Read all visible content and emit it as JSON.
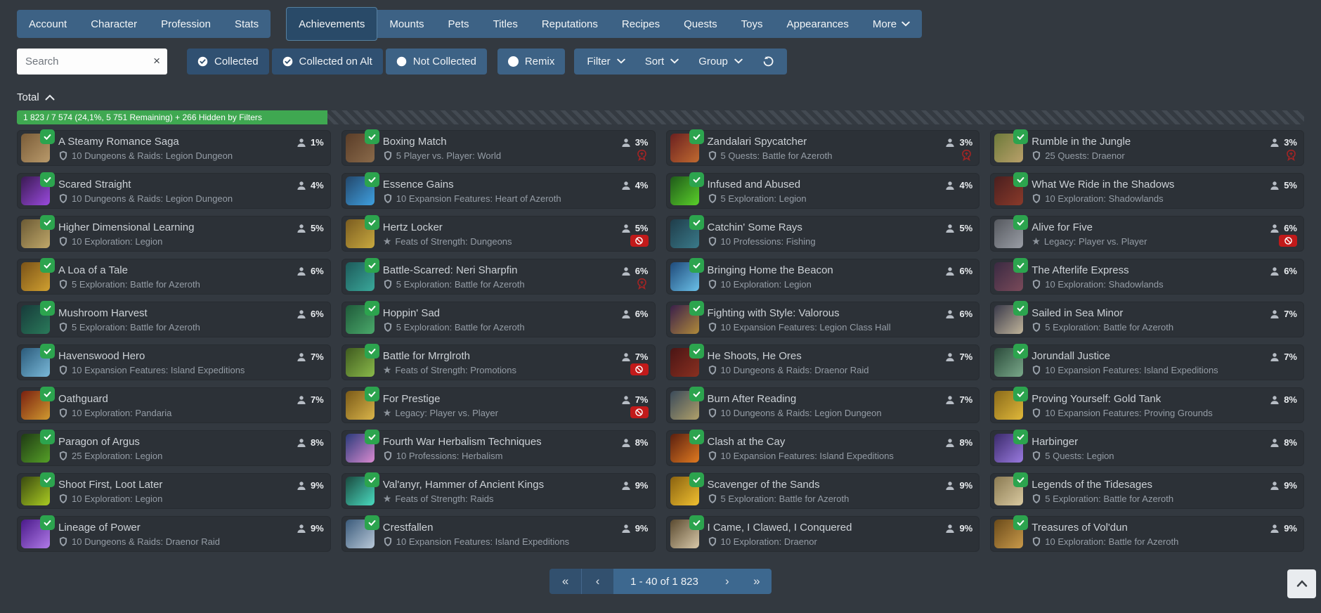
{
  "colors": {
    "nav_blue": "#3d6285",
    "selected_tab": "#294a68",
    "active_filter": "#305071",
    "progress_green": "#3fa851",
    "collected_badge_green": "#2ca44e",
    "unobtainable_red": "#c11a1a",
    "horde_red": "#a32424"
  },
  "nav": {
    "group1": [
      "Account",
      "Character",
      "Profession",
      "Stats"
    ],
    "group2": [
      "Achievements",
      "Mounts",
      "Pets",
      "Titles",
      "Reputations",
      "Recipes",
      "Quests",
      "Toys",
      "Appearances"
    ],
    "selected": "Achievements",
    "more_label": "More"
  },
  "filters": {
    "search_placeholder": "Search",
    "clear_icon": "×",
    "toggles": [
      {
        "label": "Collected",
        "icon": "check-circle",
        "active": true
      },
      {
        "label": "Collected on Alt",
        "icon": "check-circle",
        "active": true
      },
      {
        "label": "Not Collected",
        "icon": "circle",
        "active": false
      }
    ],
    "remix_label": "Remix",
    "dropdowns": [
      "Filter",
      "Sort",
      "Group"
    ]
  },
  "summary": {
    "section_label": "Total",
    "progress_text": "1 823 / 7 574 (24,1%, 5 751 Remaining) + 266 Hidden by Filters",
    "progress_percent": 24.1
  },
  "cards": [
    {
      "title": "A Steamy Romance Saga",
      "category_icon": "shield",
      "category": "10 Dungeons & Raids: Legion Dungeon",
      "percent": "1%",
      "badge": null,
      "icon_colors": [
        "#7a5c38",
        "#b99a6b"
      ]
    },
    {
      "title": "Boxing Match",
      "category_icon": "shield",
      "category": "5 Player vs. Player: World",
      "percent": "3%",
      "badge": "horde",
      "icon_colors": [
        "#5a3d28",
        "#8a6a4a"
      ]
    },
    {
      "title": "Zandalari Spycatcher",
      "category_icon": "shield",
      "category": "5 Quests: Battle for Azeroth",
      "percent": "3%",
      "badge": "horde",
      "icon_colors": [
        "#6b2020",
        "#c06a30"
      ]
    },
    {
      "title": "Rumble in the Jungle",
      "category_icon": "shield",
      "category": "25 Quests: Draenor",
      "percent": "3%",
      "badge": "horde",
      "icon_colors": [
        "#6d7a3a",
        "#b9a06a"
      ]
    },
    {
      "title": "Scared Straight",
      "category_icon": "shield",
      "category": "10 Dungeons & Raids: Legion Dungeon",
      "percent": "4%",
      "badge": null,
      "icon_colors": [
        "#3a1a52",
        "#9a4ade"
      ]
    },
    {
      "title": "Essence Gains",
      "category_icon": "shield",
      "category": "10 Expansion Features: Heart of Azeroth",
      "percent": "4%",
      "badge": null,
      "icon_colors": [
        "#23476b",
        "#3fa0e0"
      ]
    },
    {
      "title": "Infused and Abused",
      "category_icon": "shield",
      "category": "5 Exploration: Legion",
      "percent": "4%",
      "badge": null,
      "icon_colors": [
        "#1f5a1a",
        "#5ad02a"
      ]
    },
    {
      "title": "What We Ride in the Shadows",
      "category_icon": "shield",
      "category": "10 Exploration: Shadowlands",
      "percent": "5%",
      "badge": null,
      "icon_colors": [
        "#4a1f1f",
        "#8a3a2a"
      ]
    },
    {
      "title": "Higher Dimensional Learning",
      "category_icon": "shield",
      "category": "10 Exploration: Legion",
      "percent": "5%",
      "badge": null,
      "icon_colors": [
        "#6b5a34",
        "#c0a86a"
      ]
    },
    {
      "title": "Hertz Locker",
      "category_icon": "star",
      "category": "Feats of Strength: Dungeons",
      "percent": "5%",
      "badge": "unobtainable",
      "icon_colors": [
        "#7a5c20",
        "#c9a93f"
      ]
    },
    {
      "title": "Catchin' Some Rays",
      "category_icon": "shield",
      "category": "10 Professions: Fishing",
      "percent": "5%",
      "badge": null,
      "icon_colors": [
        "#1f3d4a",
        "#3a7a8a"
      ]
    },
    {
      "title": "Alive for Five",
      "category_icon": "star",
      "category": "Legacy: Player vs. Player",
      "percent": "6%",
      "badge": "unobtainable",
      "icon_colors": [
        "#55585e",
        "#9a9ea6"
      ]
    },
    {
      "title": "A Loa of a Tale",
      "category_icon": "shield",
      "category": "5 Exploration: Battle for Azeroth",
      "percent": "6%",
      "badge": null,
      "icon_colors": [
        "#7a5218",
        "#d0a030"
      ]
    },
    {
      "title": "Battle-Scarred: Neri Sharpfin",
      "category_icon": "shield",
      "category": "5 Exploration: Battle for Azeroth",
      "percent": "6%",
      "badge": "horde",
      "icon_colors": [
        "#1d5a5a",
        "#3aa89a"
      ]
    },
    {
      "title": "Bringing Home the Beacon",
      "category_icon": "shield",
      "category": "10 Exploration: Legion",
      "percent": "6%",
      "badge": null,
      "icon_colors": [
        "#1f4a7a",
        "#6ac0e8"
      ]
    },
    {
      "title": "The Afterlife Express",
      "category_icon": "shield",
      "category": "10 Exploration: Shadowlands",
      "percent": "6%",
      "badge": null,
      "icon_colors": [
        "#3a2a42",
        "#7a4a5a"
      ]
    },
    {
      "title": "Mushroom Harvest",
      "category_icon": "shield",
      "category": "5 Exploration: Battle for Azeroth",
      "percent": "6%",
      "badge": null,
      "icon_colors": [
        "#173a3a",
        "#2a7a5a"
      ]
    },
    {
      "title": "Hoppin' Sad",
      "category_icon": "shield",
      "category": "5 Exploration: Battle for Azeroth",
      "percent": "6%",
      "badge": null,
      "icon_colors": [
        "#1f5a3a",
        "#4aa96a"
      ]
    },
    {
      "title": "Fighting with Style: Valorous",
      "category_icon": "shield",
      "category": "10 Expansion Features: Legion Class Hall",
      "percent": "6%",
      "badge": null,
      "icon_colors": [
        "#3a1f4a",
        "#b08a3a"
      ]
    },
    {
      "title": "Sailed in Sea Minor",
      "category_icon": "shield",
      "category": "5 Exploration: Battle for Azeroth",
      "percent": "7%",
      "badge": null,
      "icon_colors": [
        "#3a3a4a",
        "#c0b49a"
      ]
    },
    {
      "title": "Havenswood Hero",
      "category_icon": "shield",
      "category": "10 Expansion Features: Island Expeditions",
      "percent": "7%",
      "badge": null,
      "icon_colors": [
        "#2a5a7a",
        "#7ab9d9"
      ]
    },
    {
      "title": "Battle for Mrrglroth",
      "category_icon": "star",
      "category": "Feats of Strength: Promotions",
      "percent": "7%",
      "badge": "unobtainable",
      "icon_colors": [
        "#3f5a1f",
        "#8aba4a"
      ]
    },
    {
      "title": "He Shoots, He Ores",
      "category_icon": "shield",
      "category": "10 Dungeons & Raids: Draenor Raid",
      "percent": "7%",
      "badge": null,
      "icon_colors": [
        "#4a1515",
        "#8a3020"
      ]
    },
    {
      "title": "Jorundall Justice",
      "category_icon": "shield",
      "category": "10 Expansion Features: Island Expeditions",
      "percent": "7%",
      "badge": null,
      "icon_colors": [
        "#2a4a3a",
        "#7aa98a"
      ]
    },
    {
      "title": "Oathguard",
      "category_icon": "shield",
      "category": "10 Exploration: Pandaria",
      "percent": "7%",
      "badge": null,
      "icon_colors": [
        "#7a2010",
        "#d09a30"
      ]
    },
    {
      "title": "For Prestige",
      "category_icon": "star",
      "category": "Legacy: Player vs. Player",
      "percent": "7%",
      "badge": "unobtainable",
      "icon_colors": [
        "#7a5a18",
        "#d9b44a"
      ]
    },
    {
      "title": "Burn After Reading",
      "category_icon": "shield",
      "category": "10 Dungeons & Raids: Legion Dungeon",
      "percent": "7%",
      "badge": null,
      "icon_colors": [
        "#3a4a5a",
        "#b0a06a"
      ]
    },
    {
      "title": "Proving Yourself: Gold Tank",
      "category_icon": "shield",
      "category": "10 Expansion Features: Proving Grounds",
      "percent": "8%",
      "badge": null,
      "icon_colors": [
        "#8a6a1a",
        "#e0b83a"
      ]
    },
    {
      "title": "Paragon of Argus",
      "category_icon": "shield",
      "category": "25 Exploration: Legion",
      "percent": "8%",
      "badge": null,
      "icon_colors": [
        "#1f3a14",
        "#55a027"
      ]
    },
    {
      "title": "Fourth War Herbalism Techniques",
      "category_icon": "shield",
      "category": "10 Professions: Herbalism",
      "percent": "8%",
      "badge": null,
      "icon_colors": [
        "#2a3a7a",
        "#d98ad0"
      ]
    },
    {
      "title": "Clash at the Cay",
      "category_icon": "shield",
      "category": "10 Expansion Features: Island Expeditions",
      "percent": "8%",
      "badge": null,
      "icon_colors": [
        "#5a1f10",
        "#e07a20"
      ]
    },
    {
      "title": "Harbinger",
      "category_icon": "shield",
      "category": "5 Quests: Legion",
      "percent": "8%",
      "badge": null,
      "icon_colors": [
        "#3a2a6a",
        "#9a7ae0"
      ]
    },
    {
      "title": "Shoot First, Loot Later",
      "category_icon": "shield",
      "category": "10 Exploration: Legion",
      "percent": "9%",
      "badge": null,
      "icon_colors": [
        "#3a4a10",
        "#aacc22"
      ]
    },
    {
      "title": "Val'anyr, Hammer of Ancient Kings",
      "category_icon": "star",
      "category": "Feats of Strength: Raids",
      "percent": "9%",
      "badge": null,
      "icon_colors": [
        "#1a4a3f",
        "#4adbc0"
      ]
    },
    {
      "title": "Scavenger of the Sands",
      "category_icon": "shield",
      "category": "5 Exploration: Battle for Azeroth",
      "percent": "9%",
      "badge": null,
      "icon_colors": [
        "#8a6210",
        "#f0c030"
      ]
    },
    {
      "title": "Legends of the Tidesages",
      "category_icon": "shield",
      "category": "5 Exploration: Battle for Azeroth",
      "percent": "9%",
      "badge": null,
      "icon_colors": [
        "#8a7a52",
        "#d9c9a0"
      ]
    },
    {
      "title": "Lineage of Power",
      "category_icon": "shield",
      "category": "10 Dungeons & Raids: Draenor Raid",
      "percent": "9%",
      "badge": null,
      "icon_colors": [
        "#4a1a8a",
        "#b07ae8"
      ]
    },
    {
      "title": "Crestfallen",
      "category_icon": "shield",
      "category": "10 Expansion Features: Island Expeditions",
      "percent": "9%",
      "badge": null,
      "icon_colors": [
        "#3a5a7a",
        "#b9c9d9"
      ]
    },
    {
      "title": "I Came, I Clawed, I Conquered",
      "category_icon": "shield",
      "category": "10 Exploration: Draenor",
      "percent": "9%",
      "badge": null,
      "icon_colors": [
        "#5a4a30",
        "#d9c9a9"
      ]
    },
    {
      "title": "Treasures of Vol'dun",
      "category_icon": "shield",
      "category": "10 Exploration: Battle for Azeroth",
      "percent": "9%",
      "badge": null,
      "icon_colors": [
        "#6a4a1a",
        "#c99a4a"
      ]
    }
  ],
  "pagination": {
    "first": "«",
    "prev": "‹",
    "label": "1 - 40 of 1 823",
    "next": "›",
    "last": "»"
  }
}
